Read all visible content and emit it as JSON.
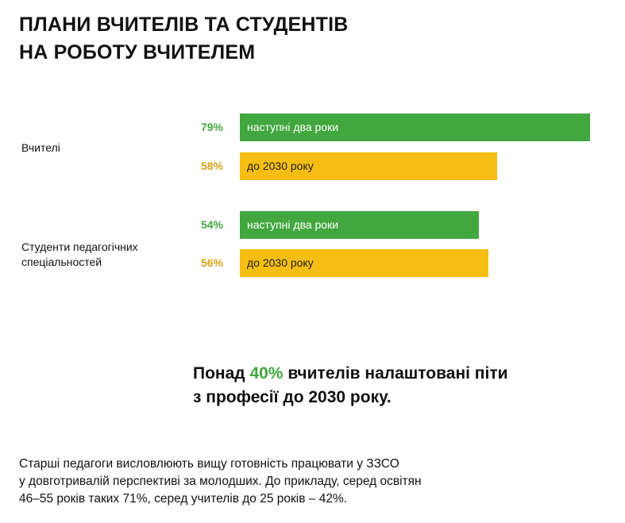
{
  "title": "ПЛАНИ ВЧИТЕЛІВ ТА СТУДЕНТІВ\nНА РОБОТУ ВЧИТЕЛЕМ",
  "colors": {
    "green": "#43a73f",
    "yellow": "#f6be12",
    "pct_yellow": "#d4a417",
    "bar_text": "#222222"
  },
  "chart_data": {
    "type": "bar",
    "orientation": "horizontal",
    "xlim": [
      0,
      100
    ],
    "groups": [
      {
        "label": "Вчителі",
        "bars": [
          {
            "pct_label": "79%",
            "value": 79,
            "text": "наступні два роки",
            "color": "green"
          },
          {
            "pct_label": "58%",
            "value": 58,
            "text": "до 2030 року",
            "color": "yellow"
          }
        ]
      },
      {
        "label": "Студенти педагогічних\nспеціальностей",
        "bars": [
          {
            "pct_label": "54%",
            "value": 54,
            "text": "наступні два роки",
            "color": "green"
          },
          {
            "pct_label": "56%",
            "value": 56,
            "text": "до 2030 року",
            "color": "yellow"
          }
        ]
      }
    ]
  },
  "headline": {
    "prefix": "Понад ",
    "highlight": "40%",
    "suffix": " вчителів налаштовані піти",
    "line2": "з професії до 2030 року."
  },
  "note": "Старші педагоги висловлюють вищу готовність працювати у ЗЗСО\nу довготривалій перспективі за молодших. До прикладу, серед освітян\n46–55 років таких 71%, серед учителів до 25 років – 42%."
}
